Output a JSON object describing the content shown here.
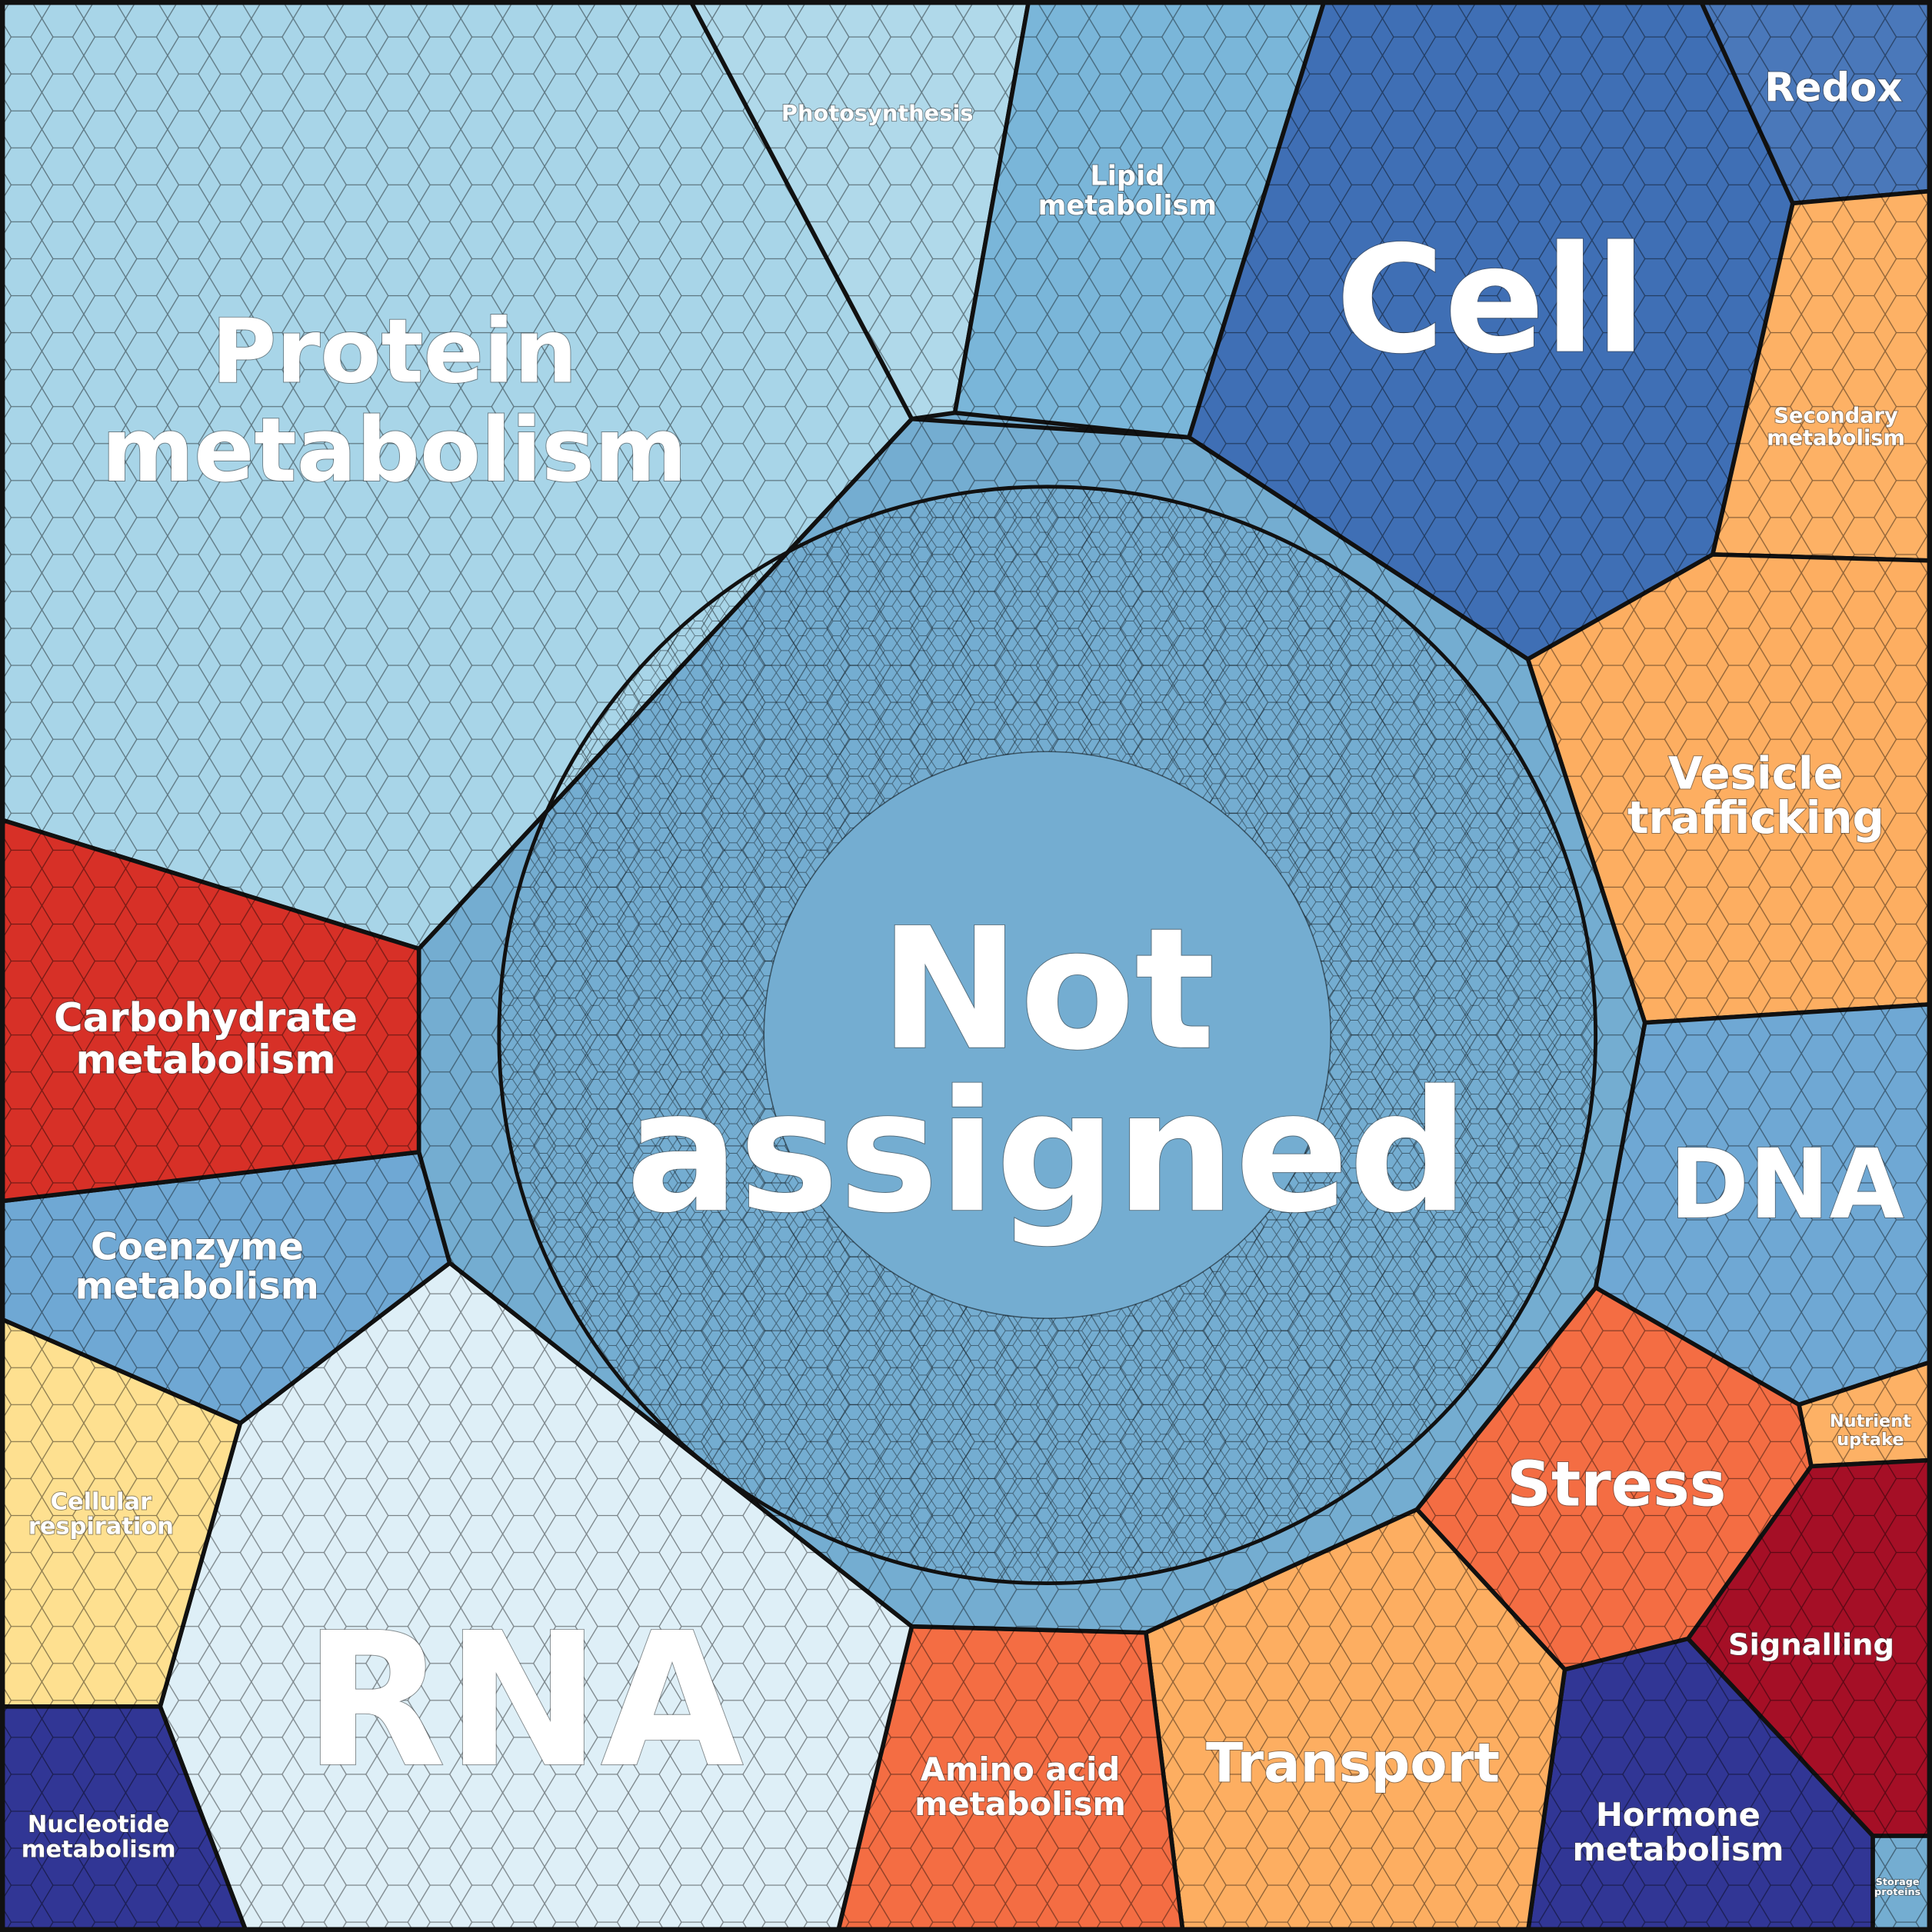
{
  "cells": [
    {
      "label": "Protein metabolism"
    },
    {
      "label": "Photosynthesis"
    },
    {
      "label": "Lipid metabolism"
    },
    {
      "label": "Cell"
    },
    {
      "label": "Redox"
    },
    {
      "label": "Secondary metabolism"
    },
    {
      "label": "Vesicle trafficking"
    },
    {
      "label": "Not assigned"
    },
    {
      "label": "DNA"
    },
    {
      "label": "Nutrient uptake"
    },
    {
      "label": "Stress"
    },
    {
      "label": "Signalling"
    },
    {
      "label": "Hormone metabolism"
    },
    {
      "label": "Storage proteins"
    },
    {
      "label": "Transport"
    },
    {
      "label": "Amino acid metabolism"
    },
    {
      "label": "RNA"
    },
    {
      "label": "Nucleotide metabolism"
    },
    {
      "label": "Cellular respiration"
    },
    {
      "label": "Coenzyme metabolism"
    },
    {
      "label": "Carbohydrate metabolism"
    }
  ]
}
